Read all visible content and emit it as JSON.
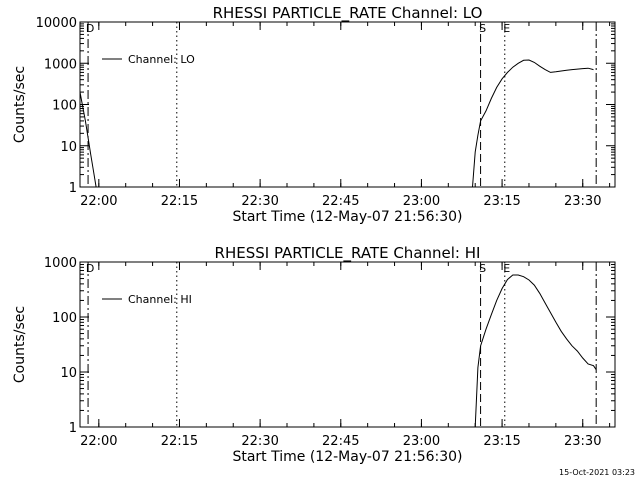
{
  "chart_data": [
    {
      "type": "line",
      "title": "RHESSI PARTICLE_RATE Channel: LO",
      "xlabel": "Start Time (12-May-07 21:56:30)",
      "ylabel": "Counts/sec",
      "y_scale": "log",
      "ylim": [
        1,
        10000
      ],
      "xlim": [
        "21:56:30",
        "23:36:00"
      ],
      "x_ticks": [
        "22:00",
        "22:15",
        "22:30",
        "22:45",
        "23:00",
        "23:15",
        "23:30"
      ],
      "y_ticks": [
        "1",
        "10",
        "100",
        "1000",
        "10000"
      ],
      "legend": {
        "position": "top-left",
        "entries": [
          "Channel: LO"
        ]
      },
      "markers": [
        {
          "label": "D",
          "time": "21:58:00",
          "style": "dash-dot"
        },
        {
          "label": "",
          "time": "22:14:30",
          "style": "dotted"
        },
        {
          "label": "S",
          "time": "23:11:00",
          "style": "dashed"
        },
        {
          "label": "E",
          "time": "23:15:30",
          "style": "dotted"
        },
        {
          "label": "",
          "time": "23:32:30",
          "style": "dash-dot"
        }
      ],
      "series": [
        {
          "name": "Channel: LO",
          "segments": [
            {
              "x": [
                "21:56:30",
                "21:57:30",
                "21:58:30",
                "21:59:00",
                "21:59:30"
              ],
              "y": [
                200,
                40,
                6,
                2.5,
                1
              ]
            },
            {
              "x": [
                "23:09:30",
                "23:10:00",
                "23:10:30",
                "23:11:00",
                "23:12:00",
                "23:13:00",
                "23:14:00",
                "23:15:00",
                "23:16:00",
                "23:17:00",
                "23:18:00",
                "23:19:00",
                "23:20:00",
                "23:21:00",
                "23:22:00",
                "23:23:00",
                "23:24:00",
                "23:25:00",
                "23:26:00",
                "23:27:00",
                "23:28:00",
                "23:29:00",
                "23:30:00",
                "23:31:00",
                "23:32:00"
              ],
              "y": [
                1,
                7,
                18,
                40,
                70,
                140,
                260,
                420,
                600,
                800,
                1000,
                1180,
                1200,
                1050,
                850,
                700,
                600,
                620,
                650,
                680,
                700,
                720,
                740,
                760,
                700
              ]
            }
          ]
        }
      ]
    },
    {
      "type": "line",
      "title": "RHESSI PARTICLE_RATE Channel: HI",
      "xlabel": "Start Time (12-May-07 21:56:30)",
      "ylabel": "Counts/sec",
      "y_scale": "log",
      "ylim": [
        1,
        1000
      ],
      "xlim": [
        "21:56:30",
        "23:36:00"
      ],
      "x_ticks": [
        "22:00",
        "22:15",
        "22:30",
        "22:45",
        "23:00",
        "23:15",
        "23:30"
      ],
      "y_ticks": [
        "1",
        "10",
        "100",
        "1000"
      ],
      "legend": {
        "position": "top-left",
        "entries": [
          "Channel: HI"
        ]
      },
      "markers": [
        {
          "label": "D",
          "time": "21:58:00",
          "style": "dash-dot"
        },
        {
          "label": "",
          "time": "22:14:30",
          "style": "dotted"
        },
        {
          "label": "S",
          "time": "23:11:00",
          "style": "dashed"
        },
        {
          "label": "E",
          "time": "23:15:30",
          "style": "dotted"
        },
        {
          "label": "",
          "time": "23:32:30",
          "style": "dash-dot"
        }
      ],
      "series": [
        {
          "name": "Channel: HI",
          "segments": [
            {
              "x": [
                "23:10:00",
                "23:10:30",
                "23:11:00",
                "23:12:00",
                "23:13:00",
                "23:14:00",
                "23:15:00",
                "23:16:00",
                "23:17:00",
                "23:18:00",
                "23:19:00",
                "23:20:00",
                "23:21:00",
                "23:22:00",
                "23:23:00",
                "23:24:00",
                "23:25:00",
                "23:26:00",
                "23:27:00",
                "23:28:00",
                "23:29:00",
                "23:30:00",
                "23:31:00",
                "23:32:00",
                "23:32:30"
              ],
              "y": [
                1,
                12,
                30,
                60,
                110,
                200,
                330,
                480,
                580,
                580,
                540,
                470,
                380,
                270,
                180,
                120,
                80,
                55,
                40,
                30,
                24,
                18,
                14,
                13,
                11
              ]
            }
          ]
        }
      ]
    }
  ],
  "timestamp": "15-Oct-2021 03:23"
}
